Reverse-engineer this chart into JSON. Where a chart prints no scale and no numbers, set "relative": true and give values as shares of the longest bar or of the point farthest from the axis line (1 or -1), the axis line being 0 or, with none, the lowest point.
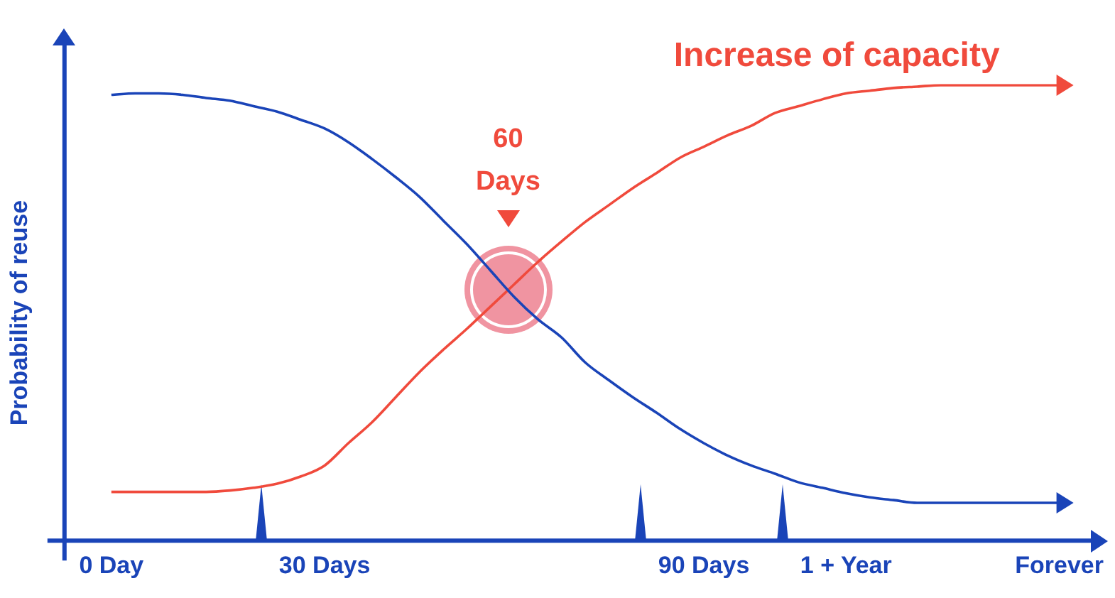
{
  "chart_data": {
    "type": "line",
    "relative": true,
    "ylabel": "Probability of reuse",
    "categories": [
      "0 Day",
      null,
      null,
      null,
      null,
      null,
      null,
      null,
      null,
      "30 Days",
      null,
      null,
      null,
      null,
      null,
      null,
      null,
      null,
      null,
      null,
      null,
      null,
      null,
      null,
      null,
      "90 Days",
      null,
      null,
      null,
      null,
      null,
      "1 + Year",
      null,
      null,
      null,
      null,
      null,
      null,
      null,
      null,
      "Forever"
    ],
    "series": [
      {
        "color": "#1a44b8",
        "values": [
          0.979,
          0.982,
          0.982,
          0.979,
          0.972,
          0.966,
          0.954,
          0.942,
          0.924,
          0.905,
          0.875,
          0.838,
          0.798,
          0.755,
          0.703,
          0.651,
          0.593,
          0.535,
          0.486,
          0.446,
          0.391,
          0.352,
          0.315,
          0.281,
          0.245,
          0.214,
          0.187,
          0.165,
          0.147,
          0.128,
          0.116,
          0.104,
          0.095,
          0.089,
          0.083,
          0.083,
          0.083,
          0.083,
          0.083,
          0.083,
          0.083
        ]
      },
      {
        "name": "Increase of capacity",
        "color": "#f04a3c",
        "values": [
          0.107,
          0.107,
          0.107,
          0.107,
          0.107,
          0.11,
          0.116,
          0.125,
          0.141,
          0.165,
          0.214,
          0.26,
          0.315,
          0.37,
          0.419,
          0.465,
          0.514,
          0.563,
          0.612,
          0.657,
          0.7,
          0.737,
          0.774,
          0.807,
          0.841,
          0.865,
          0.89,
          0.911,
          0.939,
          0.954,
          0.969,
          0.982,
          0.988,
          0.994,
          0.997,
          1,
          1,
          1,
          1,
          1,
          1
        ]
      }
    ],
    "annotations": [
      "60 Days"
    ],
    "grid": false,
    "legend": false,
    "marker": "none",
    "line_style": "solid"
  }
}
